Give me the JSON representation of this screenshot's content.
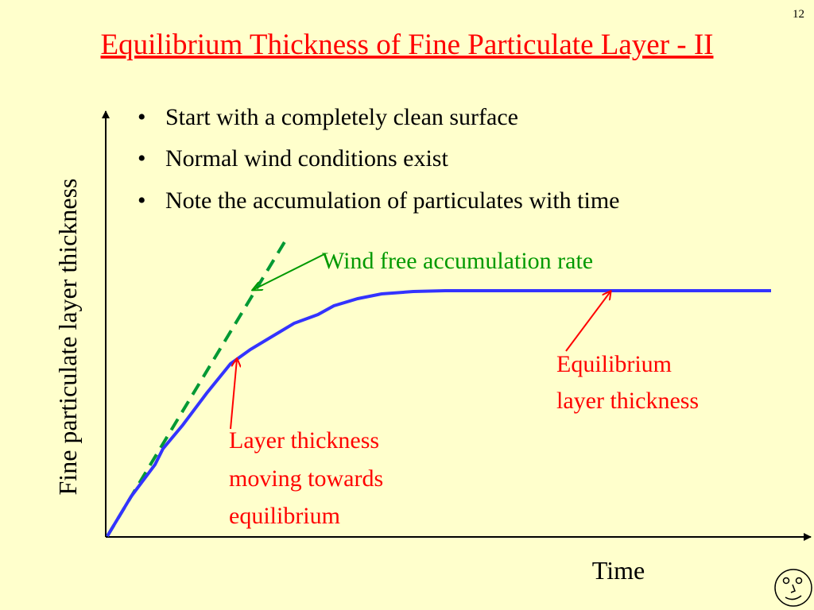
{
  "slide_number": "12",
  "title": "Equilibrium Thickness of Fine Particulate Layer - II",
  "bullets": [
    "Start with a completely clean surface",
    "Normal wind conditions exist",
    "Note the accumulation of particulates with time"
  ],
  "diagram": {
    "y_axis_label": "Fine particulate layer thickness",
    "x_axis_label": "Time",
    "wind_free_label": "Wind free accumulation rate",
    "equilibrium_label": [
      "Equilibrium",
      "layer thickness"
    ],
    "moving_label": [
      "Layer thickness",
      "moving towards",
      "equilibrium"
    ]
  }
}
